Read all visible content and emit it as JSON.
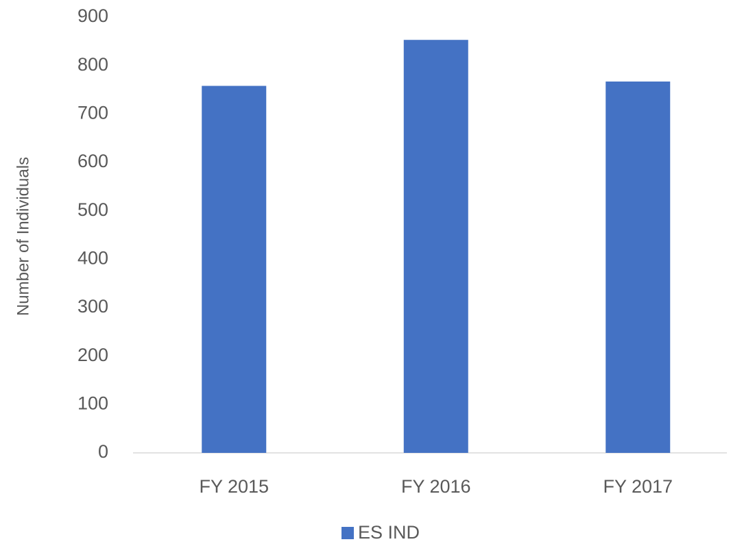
{
  "chart_data": {
    "type": "bar",
    "y_label": "Number of Individuals",
    "categories": [
      "FY 2015",
      "FY 2016",
      "FY 2017"
    ],
    "series": [
      {
        "name": "ES IND",
        "color": "#4472c4",
        "values": [
          758,
          853,
          767
        ]
      }
    ],
    "ylim": [
      0,
      900
    ],
    "yticks": [
      0,
      100,
      200,
      300,
      400,
      500,
      600,
      700,
      800,
      900
    ],
    "grid": false,
    "legend": "bottom"
  }
}
